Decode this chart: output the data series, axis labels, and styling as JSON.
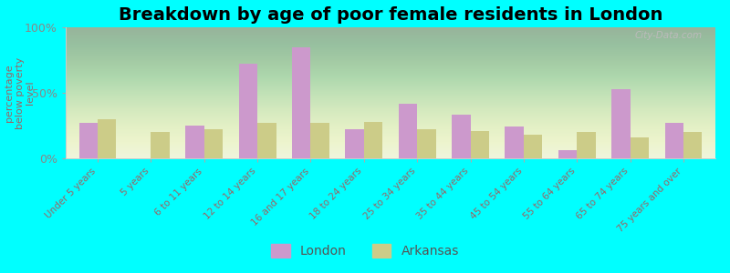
{
  "title": "Breakdown by age of poor female residents in London",
  "ylabel": "percentage\nbelow poverty\nlevel",
  "categories": [
    "Under 5 years",
    "5 years",
    "6 to 11 years",
    "12 to 14 years",
    "16 and 17 years",
    "18 to 24 years",
    "25 to 34 years",
    "35 to 44 years",
    "45 to 54 years",
    "55 to 64 years",
    "65 to 74 years",
    "75 years and over"
  ],
  "london_values": [
    27,
    0,
    25,
    72,
    85,
    22,
    42,
    33,
    24,
    6,
    53,
    27
  ],
  "arkansas_values": [
    30,
    20,
    22,
    27,
    27,
    28,
    22,
    21,
    18,
    20,
    16,
    20
  ],
  "london_color": "#cc99cc",
  "arkansas_color": "#cccc88",
  "background_color": "#00ffff",
  "ylim": [
    0,
    100
  ],
  "yticks": [
    0,
    50,
    100
  ],
  "ytick_labels": [
    "0%",
    "50%",
    "100%"
  ],
  "title_fontsize": 14,
  "legend_london": "London",
  "legend_arkansas": "Arkansas",
  "watermark": "City-Data.com",
  "xlabel_color": "#996666",
  "ylabel_color": "#996666",
  "ytick_color": "#888888"
}
